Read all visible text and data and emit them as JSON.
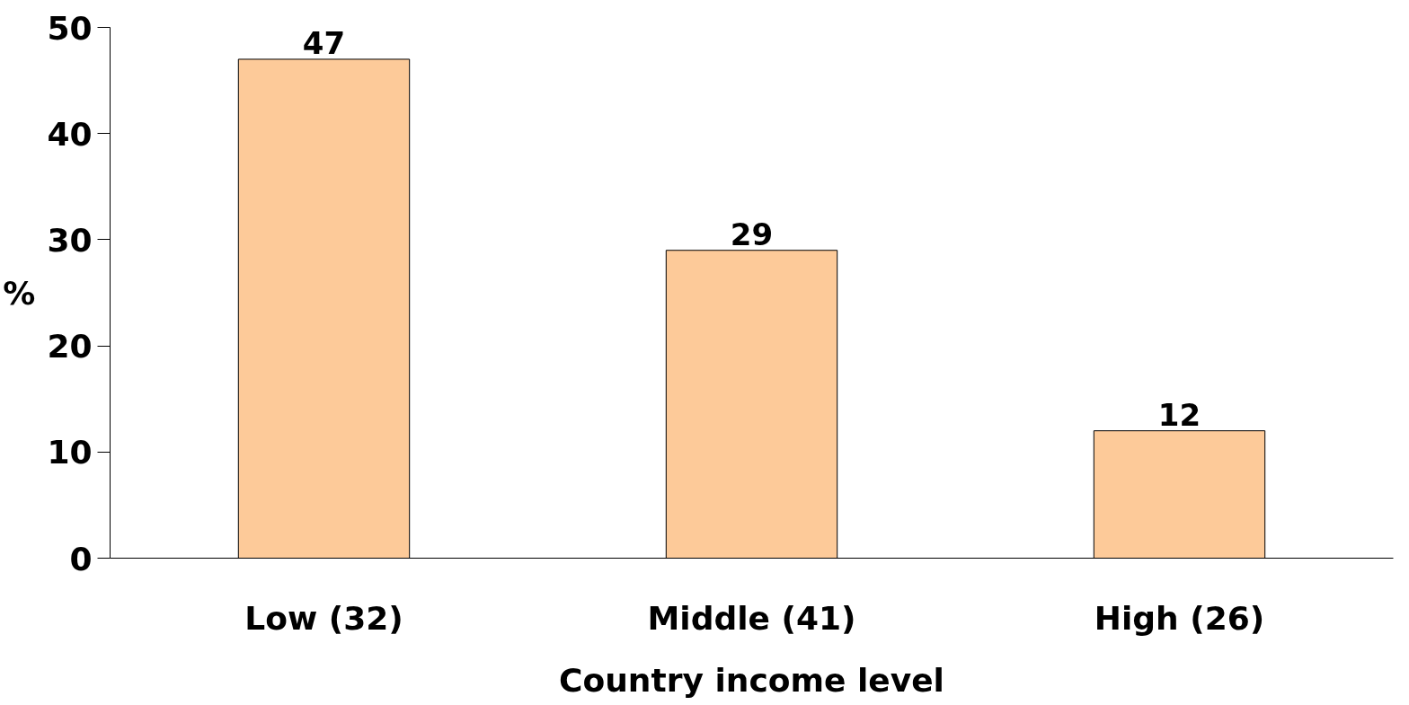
{
  "chart_data": {
    "type": "bar",
    "xlabel": "Country income level",
    "ylabel": "%",
    "categories": [
      "Low (32)",
      "Middle (41)",
      "High (26)"
    ],
    "values": [
      47,
      29,
      12
    ],
    "color": "#fdca99",
    "ylim": [
      0,
      50
    ],
    "yticks": [
      0,
      10,
      20,
      30,
      40,
      50
    ],
    "grid": false,
    "data_labels": true
  }
}
